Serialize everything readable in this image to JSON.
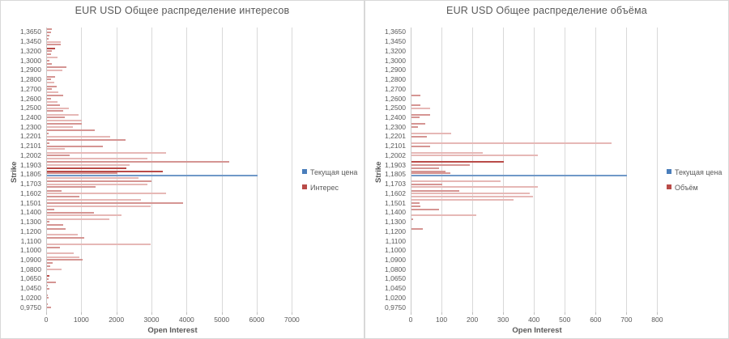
{
  "colors": {
    "bar_light": "#e6b8b6",
    "bar_medium": "#d59593",
    "bar_dark": "#b94b48",
    "price_line": "#7098c8",
    "legend_blue": "#4a7ebb",
    "legend_red": "#b94b48",
    "gridline": "#d9d9d9",
    "text": "#595959"
  },
  "chart_data": [
    {
      "type": "bar",
      "orientation": "horizontal",
      "title": "EUR USD Общее распределение интересов",
      "xlabel": "Open Interest",
      "ylabel": "Strike",
      "xlim": [
        0,
        7200
      ],
      "xticks": [
        0,
        1000,
        2000,
        3000,
        4000,
        5000,
        6000,
        7000
      ],
      "grid": true,
      "legend_position": "right",
      "legend": [
        {
          "label": "Текущая цена",
          "color": "#4a7ebb",
          "kind": "line"
        },
        {
          "label": "Интерес",
          "color": "#b94b48",
          "kind": "bar"
        }
      ],
      "current_price": {
        "strike": "1,1805",
        "value": 6000
      },
      "categories": [
        "1,3650",
        "1,3450",
        "1,3200",
        "1,3000",
        "1,2900",
        "1,2800",
        "1,2700",
        "1,2600",
        "1,2500",
        "1,2400",
        "1,2300",
        "1,2201",
        "1,2101",
        "1,2002",
        "1,1903",
        "1,1805",
        "1,1703",
        "1,1602",
        "1,1501",
        "1,1400",
        "1,1300",
        "1,1200",
        "1,1100",
        "1,1000",
        "1,0900",
        "1,0800",
        "1,0650",
        "1,0450",
        "1,0200",
        "0,9750"
      ],
      "groups": [
        {
          "label": "1,3650",
          "bars": [
            [
              140,
              "m"
            ],
            [
              110,
              "m"
            ],
            [
              60,
              "m"
            ]
          ]
        },
        {
          "label": "1,3450",
          "bars": [
            [
              50,
              "m"
            ],
            [
              400,
              "l"
            ],
            [
              385,
              "m"
            ]
          ]
        },
        {
          "label": "1,3200",
          "bars": [
            [
              230,
              "d"
            ],
            [
              140,
              "m"
            ],
            [
              110,
              "m"
            ]
          ]
        },
        {
          "label": "1,3000",
          "bars": [
            [
              310,
              "l"
            ],
            [
              75,
              "m"
            ],
            [
              140,
              "m"
            ]
          ]
        },
        {
          "label": "1,2900",
          "bars": [
            [
              555,
              "m"
            ],
            [
              445,
              "l"
            ],
            [
              0,
              "m"
            ]
          ]
        },
        {
          "label": "1,2800",
          "bars": [
            [
              230,
              "m"
            ],
            [
              115,
              "m"
            ],
            [
              215,
              "l"
            ]
          ]
        },
        {
          "label": "1,2700",
          "bars": [
            [
              270,
              "m"
            ],
            [
              140,
              "m"
            ],
            [
              325,
              "l"
            ]
          ]
        },
        {
          "label": "1,2600",
          "bars": [
            [
              460,
              "m"
            ],
            [
              115,
              "m"
            ],
            [
              290,
              "l"
            ]
          ]
        },
        {
          "label": "1,2500",
          "bars": [
            [
              370,
              "m"
            ],
            [
              615,
              "l"
            ],
            [
              460,
              "m"
            ]
          ]
        },
        {
          "label": "1,2400",
          "bars": [
            [
              910,
              "l"
            ],
            [
              500,
              "m"
            ],
            [
              1000,
              "l"
            ]
          ]
        },
        {
          "label": "1,2300",
          "bars": [
            [
              1000,
              "m"
            ],
            [
              730,
              "l"
            ],
            [
              1360,
              "m"
            ]
          ]
        },
        {
          "label": "1,2201",
          "bars": [
            [
              50,
              "m"
            ],
            [
              1790,
              "l"
            ],
            [
              2230,
              "m"
            ]
          ]
        },
        {
          "label": "1,2101",
          "bars": [
            [
              60,
              "m"
            ],
            [
              1600,
              "m"
            ],
            [
              500,
              "l"
            ]
          ]
        },
        {
          "label": "1,2002",
          "bars": [
            [
              3390,
              "l"
            ],
            [
              650,
              "m"
            ],
            [
              2850,
              "l"
            ]
          ]
        },
        {
          "label": "1,1903",
          "bars": [
            [
              5190,
              "m"
            ],
            [
              2350,
              "l"
            ],
            [
              2270,
              "d"
            ]
          ]
        },
        {
          "label": "1,1805",
          "bars": [
            [
              3310,
              "d"
            ],
            [
              2015,
              "m"
            ],
            [
              2615,
              "l"
            ]
          ]
        },
        {
          "label": "1,1703",
          "bars": [
            [
              2985,
              "m"
            ],
            [
              2850,
              "l"
            ],
            [
              1385,
              "m"
            ]
          ]
        },
        {
          "label": "1,1602",
          "bars": [
            [
              425,
              "m"
            ],
            [
              3400,
              "l"
            ],
            [
              925,
              "m"
            ]
          ]
        },
        {
          "label": "1,1501",
          "bars": [
            [
              2680,
              "l"
            ],
            [
              3885,
              "m"
            ],
            [
              2960,
              "l"
            ]
          ]
        },
        {
          "label": "1,1400",
          "bars": [
            [
              215,
              "m"
            ],
            [
              1345,
              "m"
            ],
            [
              2130,
              "l"
            ]
          ]
        },
        {
          "label": "1,1300",
          "bars": [
            [
              1770,
              "l"
            ],
            [
              80,
              "m"
            ],
            [
              460,
              "m"
            ]
          ]
        },
        {
          "label": "1,1200",
          "bars": [
            [
              540,
              "m"
            ],
            [
              0,
              "m"
            ],
            [
              870,
              "l"
            ]
          ]
        },
        {
          "label": "1,1100",
          "bars": [
            [
              1060,
              "m"
            ],
            [
              0,
              "m"
            ],
            [
              2960,
              "l"
            ]
          ]
        },
        {
          "label": "1,1000",
          "bars": [
            [
              360,
              "m"
            ],
            [
              0,
              "m"
            ],
            [
              770,
              "l"
            ]
          ]
        },
        {
          "label": "1,0900",
          "bars": [
            [
              920,
              "l"
            ],
            [
              1015,
              "m"
            ],
            [
              155,
              "m"
            ]
          ]
        },
        {
          "label": "1,0800",
          "bars": [
            [
              100,
              "m"
            ],
            [
              425,
              "l"
            ],
            [
              0,
              "m"
            ]
          ]
        },
        {
          "label": "1,0650",
          "bars": [
            [
              60,
              "d"
            ],
            [
              50,
              "m"
            ],
            [
              245,
              "m"
            ]
          ]
        },
        {
          "label": "1,0450",
          "bars": [
            [
              30,
              "m"
            ],
            [
              60,
              "m"
            ],
            [
              0,
              "m"
            ]
          ]
        },
        {
          "label": "1,0200",
          "bars": [
            [
              30,
              "m"
            ],
            [
              40,
              "m"
            ],
            [
              0,
              "m"
            ]
          ]
        },
        {
          "label": "0,9750",
          "bars": [
            [
              20,
              "m"
            ],
            [
              115,
              "m"
            ],
            [
              0,
              "m"
            ]
          ]
        }
      ]
    },
    {
      "type": "bar",
      "orientation": "horizontal",
      "title": "EUR USD Общее распределение объёма",
      "xlabel": "Open Interest",
      "ylabel": "Strike",
      "xlim": [
        0,
        820
      ],
      "xticks": [
        0,
        100,
        200,
        300,
        400,
        500,
        600,
        700,
        800
      ],
      "grid": true,
      "legend_position": "right",
      "legend": [
        {
          "label": "Текущая цена",
          "color": "#4a7ebb",
          "kind": "line"
        },
        {
          "label": "Объём",
          "color": "#b94b48",
          "kind": "bar"
        }
      ],
      "current_price": {
        "strike": "1,1805",
        "value": 700
      },
      "categories": [
        "1,3650",
        "1,3450",
        "1,3200",
        "1,3000",
        "1,2900",
        "1,2800",
        "1,2700",
        "1,2600",
        "1,2500",
        "1,2400",
        "1,2300",
        "1,2201",
        "1,2101",
        "1,2002",
        "1,1903",
        "1,1805",
        "1,1703",
        "1,1602",
        "1,1501",
        "1,1400",
        "1,1300",
        "1,1200",
        "1,1100",
        "1,1000",
        "1,0900",
        "1,0800",
        "1,0650",
        "1,0450",
        "1,0200",
        "0,9750"
      ],
      "groups": [
        {
          "label": "1,3650",
          "bars": [
            [
              0,
              "m"
            ],
            [
              0,
              "m"
            ],
            [
              0,
              "m"
            ]
          ]
        },
        {
          "label": "1,3450",
          "bars": [
            [
              0,
              "m"
            ],
            [
              0,
              "m"
            ],
            [
              0,
              "m"
            ]
          ]
        },
        {
          "label": "1,3200",
          "bars": [
            [
              0,
              "m"
            ],
            [
              0,
              "m"
            ],
            [
              0,
              "m"
            ]
          ]
        },
        {
          "label": "1,3000",
          "bars": [
            [
              0,
              "m"
            ],
            [
              0,
              "m"
            ],
            [
              0,
              "m"
            ]
          ]
        },
        {
          "label": "1,2900",
          "bars": [
            [
              0,
              "m"
            ],
            [
              0,
              "m"
            ],
            [
              0,
              "m"
            ]
          ]
        },
        {
          "label": "1,2800",
          "bars": [
            [
              0,
              "m"
            ],
            [
              0,
              "m"
            ],
            [
              0,
              "m"
            ]
          ]
        },
        {
          "label": "1,2700",
          "bars": [
            [
              0,
              "m"
            ],
            [
              0,
              "m"
            ],
            [
              0,
              "m"
            ]
          ]
        },
        {
          "label": "1,2600",
          "bars": [
            [
              30,
              "m"
            ],
            [
              0,
              "m"
            ],
            [
              0,
              "m"
            ]
          ]
        },
        {
          "label": "1,2500",
          "bars": [
            [
              30,
              "m"
            ],
            [
              60,
              "l"
            ],
            [
              0,
              "m"
            ]
          ]
        },
        {
          "label": "1,2400",
          "bars": [
            [
              60,
              "m"
            ],
            [
              25,
              "m"
            ],
            [
              0,
              "m"
            ]
          ]
        },
        {
          "label": "1,2300",
          "bars": [
            [
              45,
              "m"
            ],
            [
              20,
              "m"
            ],
            [
              0,
              "m"
            ]
          ]
        },
        {
          "label": "1,2201",
          "bars": [
            [
              130,
              "l"
            ],
            [
              50,
              "m"
            ],
            [
              0,
              "m"
            ]
          ]
        },
        {
          "label": "1,2101",
          "bars": [
            [
              650,
              "l"
            ],
            [
              60,
              "m"
            ],
            [
              0,
              "m"
            ]
          ]
        },
        {
          "label": "1,2002",
          "bars": [
            [
              230,
              "l"
            ],
            [
              410,
              "l"
            ],
            [
              0,
              "m"
            ]
          ]
        },
        {
          "label": "1,1903",
          "bars": [
            [
              300,
              "d"
            ],
            [
              190,
              "m"
            ],
            [
              90,
              "m"
            ]
          ]
        },
        {
          "label": "1,1805",
          "bars": [
            [
              110,
              "m"
            ],
            [
              125,
              "m"
            ],
            [
              0,
              "m"
            ]
          ]
        },
        {
          "label": "1,1703",
          "bars": [
            [
              290,
              "l"
            ],
            [
              100,
              "m"
            ],
            [
              410,
              "l"
            ]
          ]
        },
        {
          "label": "1,1602",
          "bars": [
            [
              155,
              "m"
            ],
            [
              385,
              "l"
            ],
            [
              395,
              "l"
            ]
          ]
        },
        {
          "label": "1,1501",
          "bars": [
            [
              330,
              "l"
            ],
            [
              25,
              "m"
            ],
            [
              30,
              "m"
            ]
          ]
        },
        {
          "label": "1,1400",
          "bars": [
            [
              90,
              "m"
            ],
            [
              0,
              "m"
            ],
            [
              210,
              "l"
            ]
          ]
        },
        {
          "label": "1,1300",
          "bars": [
            [
              5,
              "m"
            ],
            [
              0,
              "m"
            ],
            [
              0,
              "m"
            ]
          ]
        },
        {
          "label": "1,1200",
          "bars": [
            [
              37,
              "m"
            ],
            [
              0,
              "m"
            ],
            [
              0,
              "m"
            ]
          ]
        },
        {
          "label": "1,1100",
          "bars": [
            [
              0,
              "m"
            ],
            [
              0,
              "m"
            ],
            [
              0,
              "m"
            ]
          ]
        },
        {
          "label": "1,1000",
          "bars": [
            [
              0,
              "m"
            ],
            [
              0,
              "m"
            ],
            [
              0,
              "m"
            ]
          ]
        },
        {
          "label": "1,0900",
          "bars": [
            [
              0,
              "m"
            ],
            [
              0,
              "m"
            ],
            [
              0,
              "m"
            ]
          ]
        },
        {
          "label": "1,0800",
          "bars": [
            [
              0,
              "m"
            ],
            [
              0,
              "m"
            ],
            [
              0,
              "m"
            ]
          ]
        },
        {
          "label": "1,0650",
          "bars": [
            [
              0,
              "m"
            ],
            [
              0,
              "m"
            ],
            [
              0,
              "m"
            ]
          ]
        },
        {
          "label": "1,0450",
          "bars": [
            [
              0,
              "m"
            ],
            [
              0,
              "m"
            ],
            [
              0,
              "m"
            ]
          ]
        },
        {
          "label": "1,0200",
          "bars": [
            [
              0,
              "m"
            ],
            [
              0,
              "m"
            ],
            [
              0,
              "m"
            ]
          ]
        },
        {
          "label": "0,9750",
          "bars": [
            [
              0,
              "m"
            ],
            [
              0,
              "m"
            ],
            [
              0,
              "m"
            ]
          ]
        }
      ]
    }
  ]
}
